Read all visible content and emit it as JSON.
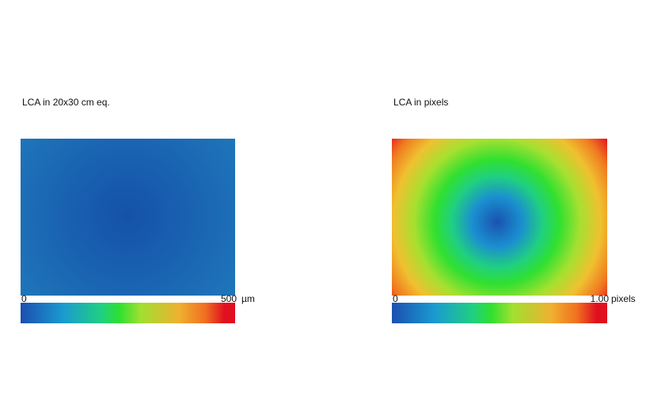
{
  "panels": [
    {
      "title": "LCA in 20x30 cm eq.",
      "scale": {
        "min": 0,
        "max": 500
      },
      "unit": "µm"
    },
    {
      "title": "LCA in pixels",
      "scale": {
        "min": 0,
        "max": {
          "value": 1,
          "label": "1.00"
        }
      },
      "unit": "pixels"
    }
  ]
}
